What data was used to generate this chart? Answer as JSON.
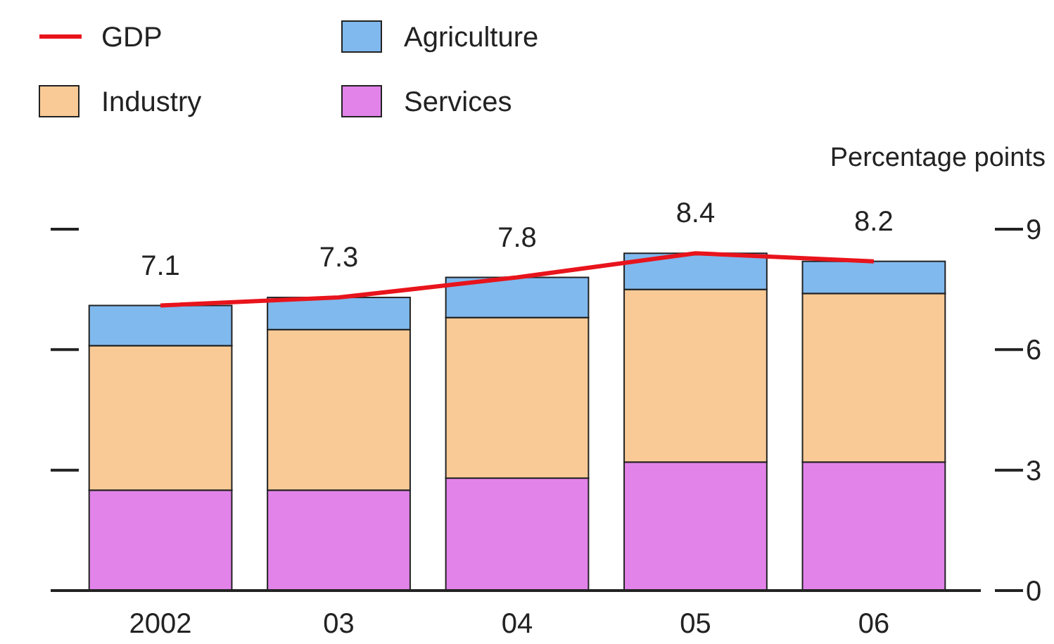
{
  "chart_data": {
    "type": "bar",
    "stacked": true,
    "ylabel": "Percentage points",
    "categories": [
      "2002",
      "03",
      "04",
      "05",
      "06"
    ],
    "series": [
      {
        "name": "Services",
        "color": "#e283ea",
        "values": [
          2.5,
          2.5,
          2.8,
          3.2,
          3.2
        ]
      },
      {
        "name": "Industry",
        "color": "#f9ca96",
        "values": [
          3.6,
          4.0,
          4.0,
          4.3,
          4.2
        ]
      },
      {
        "name": "Agriculture",
        "color": "#80b9ee",
        "values": [
          1.0,
          0.8,
          1.0,
          0.9,
          0.8
        ]
      },
      {
        "name": "GDP",
        "type": "line",
        "color": "#e8141c",
        "values": [
          7.1,
          7.3,
          7.8,
          8.4,
          8.2
        ],
        "value_labels": [
          "7.1",
          "7.3",
          "7.8",
          "8.4",
          "8.2"
        ]
      }
    ],
    "ylim": [
      0,
      9
    ],
    "yticks": [
      0,
      3,
      6,
      9
    ],
    "grid": false,
    "legend": "top left"
  }
}
